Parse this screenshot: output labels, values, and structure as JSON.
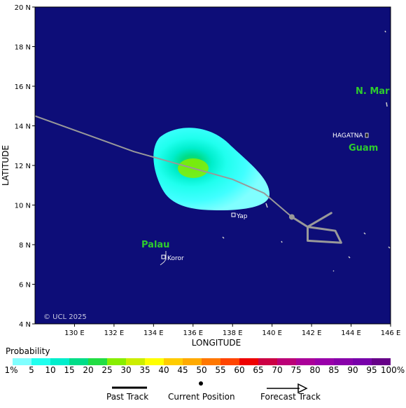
{
  "map": {
    "lat_labels": [
      "20 N",
      "18 N",
      "16 N",
      "14 N",
      "12 N",
      "10 N",
      "8 N",
      "6 N",
      "4 N"
    ],
    "lon_labels": [
      "130 E",
      "132 E",
      "134 E",
      "136 E",
      "138 E",
      "140 E",
      "142 E",
      "144 E",
      "146 E"
    ],
    "xlabel": "LONGITUDE",
    "ylabel": "LATITUDE",
    "copyright": "© UCL 2025",
    "ocean_color": "#0d0d78",
    "regions": {
      "n_mari": "N. Mari",
      "guam": "Guam",
      "palau": "Palau"
    },
    "places": {
      "hagatna": "HAGATNA",
      "yap": "Yap",
      "koror": "Koror"
    },
    "past_track": [
      [
        128.0,
        14.5
      ],
      [
        133.0,
        12.7
      ],
      [
        138.0,
        11.3
      ],
      [
        139.6,
        10.6
      ],
      [
        141.0,
        9.4
      ]
    ],
    "current_position": [
      141.0,
      9.4
    ],
    "forecast_track": [
      [
        141.0,
        9.4
      ],
      [
        141.8,
        8.9
      ],
      [
        143.0,
        9.6
      ],
      [
        141.8,
        8.9
      ],
      [
        141.8,
        8.2
      ],
      [
        143.5,
        8.1
      ],
      [
        143.2,
        8.7
      ],
      [
        142.5,
        8.8
      ],
      [
        141.8,
        8.9
      ]
    ]
  },
  "legend": {
    "title": "Probability",
    "scale_labels": [
      "1%",
      "5",
      "10",
      "15",
      "20",
      "25",
      "30",
      "35",
      "40",
      "45",
      "50",
      "55",
      "60",
      "65",
      "70",
      "75",
      "80",
      "85",
      "90",
      "95",
      "100%"
    ],
    "colors": [
      "#80ffff",
      "#20ffee",
      "#00eecc",
      "#00dd88",
      "#22dd44",
      "#88ee00",
      "#ccee00",
      "#ffff00",
      "#ffcc00",
      "#ffaa00",
      "#ff7700",
      "#ff4400",
      "#ee0000",
      "#cc0044",
      "#bb0077",
      "#aa0099",
      "#9900aa",
      "#8800aa",
      "#7700aa",
      "#660088"
    ],
    "past_track_label": "Past Track",
    "current_position_label": "Current Position",
    "forecast_track_label": "Forecast Track"
  }
}
